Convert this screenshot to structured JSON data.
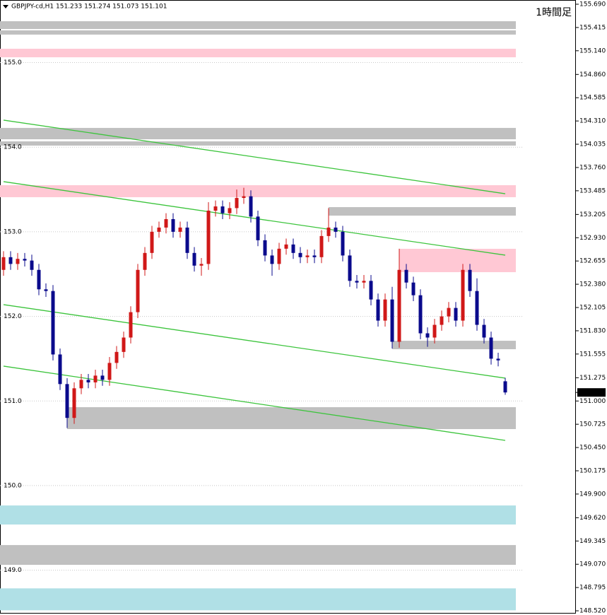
{
  "chart_data": {
    "type": "candlestick",
    "title": "GBPJPY-cd,H1  151.233 151.274 151.073 151.101",
    "timeframe": "1時間足",
    "ylim": [
      148.487,
      155.74
    ],
    "yticks": [
      {
        "value": 155.69,
        "label": "155.690"
      },
      155.415,
      {
        "value": 155.14,
        "label": "155.140"
      },
      {
        "value": 154.86,
        "label": "154.860"
      },
      154.585,
      {
        "value": 154.31,
        "label": "154.310"
      },
      154.035,
      {
        "value": 153.76,
        "label": "153.760"
      },
      153.485,
      153.205,
      {
        "value": 152.93,
        "label": "152.930"
      },
      152.655,
      {
        "value": 152.38,
        "label": "152.380"
      },
      152.105,
      {
        "value": 151.83,
        "label": "151.830"
      },
      151.555,
      151.275,
      {
        "value": 151,
        "label": "151.000"
      },
      150.725,
      {
        "value": 150.45,
        "label": "150.450"
      },
      150.175,
      {
        "value": 149.9,
        "label": "149.900"
      },
      {
        "value": 149.62,
        "label": "149.620"
      },
      149.345,
      {
        "value": 149.07,
        "label": "149.070"
      },
      148.795,
      {
        "value": 148.52,
        "label": "148.520"
      }
    ],
    "levels": [
      {
        "value": 155,
        "label": "155.0"
      },
      {
        "value": 154,
        "label": "154.0"
      },
      {
        "value": 153,
        "label": "153.0"
      },
      {
        "value": 152,
        "label": "152.0"
      },
      {
        "value": 151,
        "label": "151.0"
      },
      {
        "value": 150,
        "label": "150.0"
      },
      {
        "value": 149,
        "label": "149.0"
      }
    ],
    "last_price": 151.101,
    "bull_color": "#d01818",
    "bear_color": "#0a0a8c",
    "open": [
      152.55,
      152.7,
      152.62,
      152.68,
      152.66,
      152.55,
      152.32,
      152.3,
      151.55,
      151.2,
      150.8,
      151.15,
      151.25,
      151.22,
      151.3,
      151.25,
      151.45,
      151.58,
      151.75,
      152.05,
      152.55,
      152.75,
      153.0,
      153.05,
      153.15,
      153.0,
      153.05,
      152.75,
      152.6,
      152.62,
      153.25,
      153.3,
      153.22,
      153.28,
      153.4,
      153.42,
      153.18,
      152.9,
      152.72,
      152.62,
      152.8,
      152.85,
      152.75,
      152.7,
      152.72,
      152.7,
      152.95,
      153.05,
      153.0,
      152.72,
      152.42,
      152.4,
      152.42,
      152.2,
      151.95,
      152.2,
      151.7,
      152.55,
      152.4,
      152.25,
      151.8,
      151.75,
      151.9,
      152.0,
      152.1,
      151.95,
      152.55,
      152.3,
      151.9,
      151.75,
      151.5,
      151.233
    ],
    "high": [
      152.77,
      152.77,
      152.75,
      152.75,
      152.73,
      152.62,
      152.39,
      152.37,
      151.62,
      151.27,
      151.22,
      151.32,
      151.32,
      151.37,
      151.37,
      151.52,
      151.65,
      151.82,
      152.12,
      152.62,
      152.82,
      153.07,
      153.12,
      153.22,
      153.22,
      153.12,
      153.12,
      152.82,
      152.69,
      153.35,
      153.37,
      153.37,
      153.35,
      153.5,
      153.52,
      153.49,
      153.25,
      152.97,
      152.79,
      152.87,
      152.92,
      152.92,
      152.82,
      152.79,
      152.79,
      153.02,
      153.28,
      153.12,
      153.07,
      152.79,
      152.49,
      152.49,
      152.49,
      152.27,
      152.27,
      152.35,
      152.8,
      152.62,
      152.47,
      152.32,
      151.87,
      151.97,
      152.07,
      152.17,
      152.17,
      152.62,
      152.62,
      152.45,
      151.97,
      151.82,
      151.57,
      151.274
    ],
    "low": [
      152.48,
      152.55,
      152.55,
      152.59,
      152.48,
      152.25,
      152.23,
      151.48,
      151.13,
      150.68,
      150.73,
      151.08,
      151.15,
      151.15,
      151.18,
      151.18,
      151.38,
      151.51,
      151.68,
      151.98,
      152.48,
      152.68,
      152.93,
      152.98,
      152.93,
      152.93,
      152.68,
      152.53,
      152.48,
      152.55,
      153.18,
      153.15,
      153.15,
      153.21,
      153.33,
      153.11,
      152.83,
      152.65,
      152.48,
      152.55,
      152.73,
      152.68,
      152.63,
      152.63,
      152.63,
      152.63,
      152.88,
      152.93,
      152.65,
      152.35,
      152.33,
      152.33,
      152.13,
      151.88,
      151.88,
      151.62,
      151.63,
      152.33,
      152.18,
      151.73,
      151.64,
      151.68,
      151.83,
      151.93,
      151.88,
      151.88,
      152.23,
      151.83,
      151.68,
      151.43,
      151.41,
      151.073
    ],
    "close": [
      152.7,
      152.62,
      152.68,
      152.66,
      152.55,
      152.32,
      152.3,
      151.55,
      151.2,
      150.8,
      151.15,
      151.25,
      151.22,
      151.3,
      151.25,
      151.45,
      151.58,
      151.75,
      152.05,
      152.55,
      152.75,
      153.0,
      153.05,
      153.15,
      153.0,
      153.05,
      152.75,
      152.6,
      152.62,
      153.25,
      153.3,
      153.22,
      153.28,
      153.4,
      153.42,
      153.18,
      152.9,
      152.72,
      152.62,
      152.8,
      152.85,
      152.75,
      152.7,
      152.72,
      152.7,
      152.95,
      153.05,
      153.0,
      152.72,
      152.42,
      152.4,
      152.42,
      152.2,
      151.95,
      152.2,
      151.7,
      152.55,
      152.4,
      152.25,
      151.8,
      151.75,
      151.9,
      152.0,
      152.1,
      151.95,
      152.55,
      152.3,
      151.9,
      151.75,
      151.5,
      151.48,
      151.101
    ],
    "zones": [
      {
        "low": 155.397,
        "high": 155.489,
        "start": 0,
        "color": "#c0c0c0"
      },
      {
        "low": 155.331,
        "high": 155.381,
        "start": 0,
        "color": "#c0c0c0"
      },
      {
        "low": 155.063,
        "high": 155.164,
        "start": 0,
        "color": "#ffc8d4"
      },
      {
        "low": 154.094,
        "high": 154.228,
        "start": 0,
        "color": "#c0c0c0"
      },
      {
        "low": 154.019,
        "high": 154.069,
        "start": 0,
        "color": "#c0c0c0"
      },
      {
        "low": 153.409,
        "high": 153.551,
        "start": 0,
        "color": "#ffc8d4"
      },
      {
        "low": 153.191,
        "high": 153.292,
        "start": 46,
        "color": "#c0c0c0"
      },
      {
        "low": 152.523,
        "high": 152.799,
        "start": 56,
        "color": "#ffc8d4"
      },
      {
        "low": 151.612,
        "high": 151.712,
        "start": 55,
        "color": "#c0c0c0"
      },
      {
        "low": 150.668,
        "high": 150.927,
        "start": 9,
        "color": "#c0c0c0"
      },
      {
        "low": 149.54,
        "high": 149.765,
        "start": 0,
        "color": "#b0e0e6"
      },
      {
        "low": 149.063,
        "high": 149.297,
        "start": 0,
        "color": "#c0c0c0"
      },
      {
        "low": 148.526,
        "high": 148.785,
        "start": 0,
        "color": "#b0e0e6"
      }
    ],
    "trend_lines": [
      {
        "start": 0,
        "end": 71,
        "from": 154.32,
        "to": 153.45,
        "color": "#3cc43c"
      },
      {
        "start": 0,
        "end": 71,
        "from": 153.593,
        "to": 152.724,
        "color": "#3cc43c"
      },
      {
        "start": 0,
        "end": 71,
        "from": 152.139,
        "to": 151.27,
        "color": "#3cc43c"
      },
      {
        "start": 0,
        "end": 71,
        "from": 151.412,
        "to": 150.534,
        "color": "#3cc43c"
      }
    ]
  }
}
